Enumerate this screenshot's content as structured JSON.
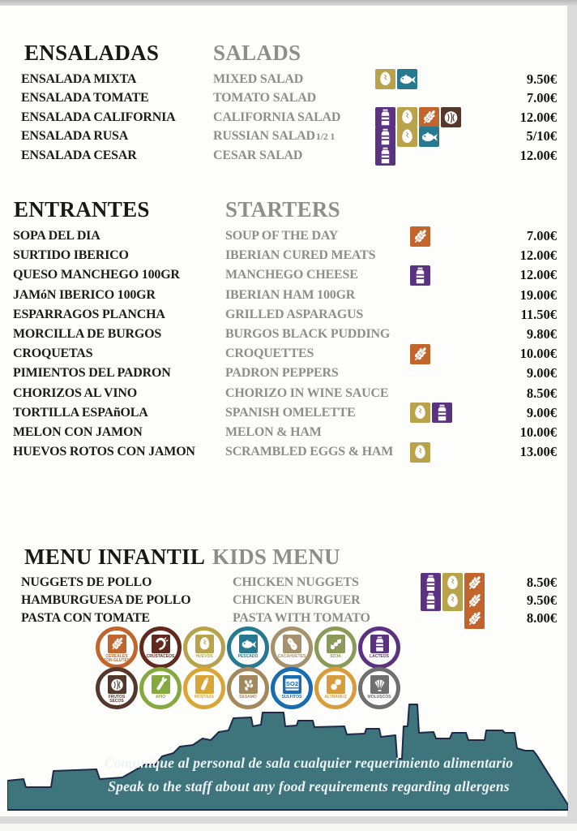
{
  "sections": [
    {
      "title_es": "ENSALADAS",
      "title_en": "SALADS",
      "items": [
        {
          "es": "ENSALADA MIXTA",
          "en": "MIXED SALAD",
          "note": "",
          "allergens": [
            "egg",
            "fish"
          ],
          "price": "9.50€"
        },
        {
          "es": "ENSALADA TOMATE",
          "en": "TOMATO SALAD",
          "note": "",
          "allergens": [],
          "price": "7.00€"
        },
        {
          "es": "ENSALADA CALIFORNIA",
          "en": "CALIFORNIA SALAD",
          "note": "",
          "allergens": [
            "milk",
            "egg",
            "gluten",
            "nuts"
          ],
          "price": "12.00€"
        },
        {
          "es": "ENSALADA RUSA",
          "en": "RUSSIAN SALAD",
          "note": "1/2  1",
          "allergens": [
            "milk",
            "egg",
            "fish"
          ],
          "price": "5/10€"
        },
        {
          "es": "ENSALADA CESAR",
          "en": "CESAR SALAD",
          "note": "",
          "allergens": [
            "milk"
          ],
          "price": "12.00€"
        }
      ]
    },
    {
      "title_es": "ENTRANTES",
      "title_en": "STARTERS",
      "items": [
        {
          "es": "SOPA DEL DIA",
          "en": "SOUP OF THE DAY",
          "note": "",
          "allergens": [
            "gluten"
          ],
          "price": "7.00€"
        },
        {
          "es": "SURTIDO IBERICO",
          "en": "IBERIAN CURED MEATS",
          "note": "",
          "allergens": [],
          "price": "12.00€"
        },
        {
          "es": "QUESO MANCHEGO 100GR",
          "en": "MANCHEGO CHEESE",
          "note": "",
          "allergens": [
            "milk"
          ],
          "price": "12.00€"
        },
        {
          "es": "JAMóN IBERICO 100GR",
          "en": "IBERIAN HAM 100GR",
          "note": "",
          "allergens": [],
          "price": "19.00€"
        },
        {
          "es": "ESPARRAGOS PLANCHA",
          "en": "GRILLED ASPARAGUS",
          "note": "",
          "allergens": [],
          "price": "11.50€"
        },
        {
          "es": "MORCILLA DE BURGOS",
          "en": "BURGOS BLACK PUDDING",
          "note": "",
          "allergens": [],
          "price": "9.80€"
        },
        {
          "es": "CROQUETAS",
          "en": "CROQUETTES",
          "note": "",
          "allergens": [
            "gluten"
          ],
          "price": "10.00€"
        },
        {
          "es": "PIMIENTOS DEL PADRON",
          "en": "PADRON PEPPERS",
          "note": "",
          "allergens": [],
          "price": "9.00€"
        },
        {
          "es": "CHORIZOS AL VINO",
          "en": "CHORIZO IN WINE SAUCE",
          "note": "",
          "allergens": [],
          "price": "8.50€"
        },
        {
          "es": "TORTILLA ESPAñOLA",
          "en": "SPANISH OMELETTE",
          "note": "",
          "allergens": [
            "egg",
            "milk"
          ],
          "price": "9.00€"
        },
        {
          "es": "MELON CON JAMON",
          "en": "MELON & HAM",
          "note": "",
          "allergens": [],
          "price": "10.00€"
        },
        {
          "es": "HUEVOS ROTOS CON JAMON",
          "en": "SCRAMBLED EGGS & HAM",
          "note": "",
          "allergens": [
            "egg"
          ],
          "price": "13.00€"
        }
      ]
    },
    {
      "title_es": "MENU INFANTIL",
      "title_en": "KIDS MENU",
      "items": [
        {
          "es": "NUGGETS DE POLLO",
          "en": "CHICKEN NUGGETS",
          "note": "",
          "allergens": [
            "milk",
            "egg",
            "gluten"
          ],
          "price": "8.50€"
        },
        {
          "es": "HAMBURGUESA DE POLLO",
          "en": "CHICKEN BURGUER",
          "note": "",
          "allergens": [
            "milk",
            "egg",
            "gluten"
          ],
          "price": "9.50€"
        },
        {
          "es": "PASTA CON TOMATE",
          "en": "PASTA WITH TOMATO",
          "note": "",
          "allergens": [
            "gluten"
          ],
          "price": "8.00€"
        }
      ]
    }
  ],
  "allergen_colors": {
    "gluten": "#c2652d",
    "egg": "#b8a24b",
    "fish": "#27798f",
    "milk": "#5b3282",
    "nuts": "#54382b"
  },
  "allergen_glyphs": {
    "gluten": "wheat",
    "egg": "egg",
    "fish": "fish",
    "milk": "milk",
    "nuts": "walnut"
  },
  "legend": {
    "rows": [
      [
        {
          "label": "CEREALES CON GLUTEN",
          "color": "#c0662d",
          "glyph": "wheat"
        },
        {
          "label": "CRUSTACEOS",
          "color": "#622a1e",
          "glyph": "shrimp"
        },
        {
          "label": "HUEVOS",
          "color": "#b8a24b",
          "glyph": "egg"
        },
        {
          "label": "PESCADO",
          "color": "#27798f",
          "glyph": "fish"
        },
        {
          "label": "CACAHUETES",
          "color": "#a5916b",
          "glyph": "peanut"
        },
        {
          "label": "SOJA",
          "color": "#8a9a57",
          "glyph": "soy"
        },
        {
          "label": "LACTEOS",
          "color": "#5b3282",
          "glyph": "milk"
        }
      ],
      [
        {
          "label": "FRUTOS SECOS",
          "color": "#54382b",
          "glyph": "walnut"
        },
        {
          "label": "APIO",
          "color": "#85a83f",
          "glyph": "celery"
        },
        {
          "label": "MOSTAZA",
          "color": "#d8a636",
          "glyph": "mustard"
        },
        {
          "label": "SESAMO",
          "color": "#a2885c",
          "glyph": "sesame"
        },
        {
          "label": "SULFITOS",
          "color": "#1a6cb0",
          "glyph": "so2"
        },
        {
          "label": "ALTRAMUZ",
          "color": "#d89c3c",
          "glyph": "lupin"
        },
        {
          "label": "MOLUSCOS",
          "color": "#6f6f6f",
          "glyph": "shell"
        }
      ]
    ]
  },
  "footer": {
    "line_es": "Comunique al personal de sala cualquier requerimiento alimentario",
    "line_en": "Speak to the staff about any food requirements regarding allergens",
    "banner_color": "#3e747b",
    "outline_color": "#1d2a4a"
  }
}
